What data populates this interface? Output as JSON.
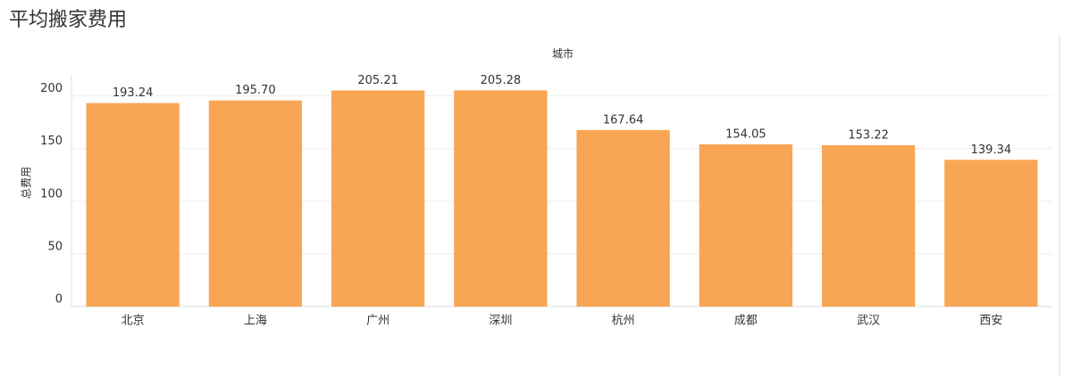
{
  "chart_data": {
    "type": "bar",
    "title": "平均搬家费用",
    "x_label": "城市",
    "y_label": "总费用",
    "categories": [
      "北京",
      "上海",
      "广州",
      "深圳",
      "杭州",
      "成都",
      "武汉",
      "西安"
    ],
    "values": [
      193.24,
      195.7,
      205.21,
      205.28,
      167.64,
      154.05,
      153.22,
      139.34
    ],
    "value_labels": [
      "193.24",
      "195.70",
      "205.21",
      "205.28",
      "167.64",
      "154.05",
      "153.22",
      "139.34"
    ],
    "color": "#f8a654",
    "ylim": [
      0,
      220
    ],
    "yticks": [
      0,
      50,
      100,
      150,
      200
    ],
    "grid": true
  }
}
